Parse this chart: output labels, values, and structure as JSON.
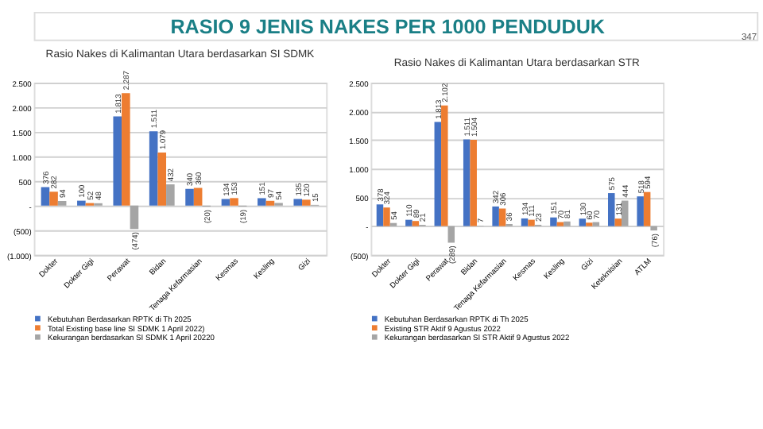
{
  "chart_data": [
    {
      "type": "other",
      "title": "RASIO 9 JENIS NAKES PER 1000 PENDUDUK",
      "annotations": [
        "347"
      ]
    },
    {
      "type": "bar",
      "title": "Rasio Nakes di Kalimantan Utara berdasarkan SI SDMK",
      "categories": [
        "Dokter",
        "Dokter Gigi",
        "Perawat",
        "Bidan",
        "Tenaga Kefarmasian",
        "Kesmas",
        "Kesling",
        "Gizi"
      ],
      "series": [
        {
          "name": "Kebutuhan Berdasarkan RPTK di Th 2025",
          "color": "#4472c4",
          "values": [
            376,
            100,
            1813,
            1511,
            340,
            134,
            151,
            135
          ],
          "value_labels": [
            "376",
            "100",
            "1.813",
            "1.511",
            "340",
            "134",
            "151",
            "135"
          ]
        },
        {
          "name": "Total Existing  base line SI SDMK 1 April 2022)",
          "color": "#ed7d31",
          "values": [
            282,
            52,
            2287,
            1079,
            360,
            153,
            97,
            120
          ],
          "value_labels": [
            "282",
            "52",
            "2.287",
            "1.079",
            "360",
            "153",
            "97",
            "120"
          ]
        },
        {
          "name": "Kekurangan berdasarkan SI SDMK 1 April 20220",
          "color": "#a5a5a5",
          "values": [
            94,
            48,
            -474,
            432,
            -20,
            -19,
            54,
            15
          ],
          "value_labels": [
            "94",
            "48",
            "(474)",
            "432",
            "(20)",
            "(19)",
            "54",
            "15"
          ]
        }
      ],
      "ylim": [
        -1000,
        2500
      ],
      "yticks": [
        {
          "value": -1000,
          "label": "(1.000)"
        },
        {
          "value": -500,
          "label": "(500)"
        },
        {
          "value": 0,
          "label": "-"
        },
        500,
        {
          "value": 1000,
          "label": "1.000"
        },
        {
          "value": 1500,
          "label": "1.500"
        },
        {
          "value": 2000,
          "label": "2.000"
        },
        {
          "value": 2500,
          "label": "2.500"
        }
      ],
      "grid": "y",
      "legend": "bottom"
    },
    {
      "type": "bar",
      "title": "Rasio Nakes di Kalimantan Utara berdasarkan STR",
      "categories": [
        "Dokter",
        "Dokter Gigi",
        "Perawat",
        "Bidan",
        "Tenaga Kefarmasian",
        "Kesmas",
        "Kesling",
        "Gizi",
        "Keteknisian",
        "ATLM"
      ],
      "series": [
        {
          "name": "Kebutuhan Berdasarkan RPTK di Th 2025",
          "color": "#4472c4",
          "values": [
            378,
            110,
            1813,
            1511,
            342,
            134,
            151,
            130,
            575,
            518
          ],
          "value_labels": [
            "378",
            "110",
            "1.813",
            "1.511",
            "342",
            "134",
            "151",
            "130",
            "575",
            "518"
          ]
        },
        {
          "name": "Existing STR Aktif 9 Agustus 2022",
          "color": "#ed7d31",
          "values": [
            324,
            89,
            2102,
            1504,
            306,
            111,
            70,
            60,
            131,
            594
          ],
          "value_labels": [
            "324",
            "89",
            "2.102",
            "1.504",
            "306",
            "111",
            "70",
            "60",
            "131",
            "594"
          ]
        },
        {
          "name": "Kekurangan berdasarkan SI STR Aktif 9 Agustus 2022",
          "color": "#a5a5a5",
          "values": [
            54,
            21,
            -289,
            7,
            36,
            23,
            81,
            70,
            444,
            -76
          ],
          "value_labels": [
            "54",
            "21",
            "(289)",
            "7",
            "36",
            "23",
            "81",
            "70",
            "444",
            "(76)"
          ]
        }
      ],
      "ylim": [
        -500,
        2500
      ],
      "yticks": [
        {
          "value": -500,
          "label": "(500)"
        },
        {
          "value": 0,
          "label": "-"
        },
        500,
        {
          "value": 1000,
          "label": "1.000"
        },
        {
          "value": 1500,
          "label": "1.500"
        },
        {
          "value": 2000,
          "label": "2.000"
        },
        {
          "value": 2500,
          "label": "2.500"
        }
      ],
      "grid": "y",
      "legend": "bottom"
    }
  ]
}
